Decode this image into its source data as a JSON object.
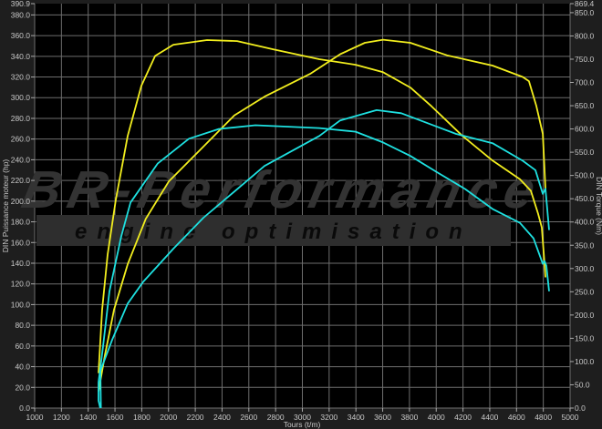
{
  "chart_data": {
    "type": "line",
    "title": "",
    "xlabel": "Tours (t/m)",
    "ylabel_left": "DIN Puissance moteur (hp)",
    "ylabel_right": "DIN Torque (Nm)",
    "xlim": [
      1000,
      5000
    ],
    "xticks": [
      1000,
      1200,
      1400,
      1600,
      1800,
      2000,
      2200,
      2400,
      2600,
      2800,
      3000,
      3200,
      3400,
      3600,
      3800,
      4000,
      4200,
      4400,
      4600,
      4800,
      5000
    ],
    "ylim_left": [
      0,
      390.9
    ],
    "yticks_left": [
      "0.0",
      "20.0",
      "40.0",
      "60.0",
      "80.0",
      "100.0",
      "120.0",
      "140.0",
      "160.0",
      "180.0",
      "200.0",
      "220.0",
      "240.0",
      "260.0",
      "280.0",
      "300.0",
      "320.0",
      "340.0",
      "360.0",
      "380.0",
      "390.9"
    ],
    "ylim_right": [
      0,
      869.4
    ],
    "yticks_right": [
      "0.0",
      "50.0",
      "100.0",
      "150.0",
      "200.0",
      "250.0",
      "300.0",
      "350.0",
      "400.0",
      "450.0",
      "500.0",
      "550.0",
      "600.0",
      "650.0",
      "700.0",
      "750.0",
      "800.0",
      "850.0",
      "869.4"
    ],
    "grid": true,
    "colors": {
      "tuned": "#f2ee1e",
      "stock": "#1ee0e0",
      "background": "#000000",
      "frame": "#1e1e1e",
      "grid": "#6e6e6e"
    },
    "series": [
      {
        "axis": "right",
        "color": "#f2ee1e",
        "points": [
          [
            1477,
            75
          ],
          [
            1504,
            212
          ],
          [
            1545,
            330
          ],
          [
            1606,
            447
          ],
          [
            1695,
            585
          ],
          [
            1797,
            693
          ],
          [
            1900,
            757
          ],
          [
            2036,
            781
          ],
          [
            2288,
            791
          ],
          [
            2513,
            789
          ],
          [
            2785,
            771
          ],
          [
            3126,
            750
          ],
          [
            3398,
            738
          ],
          [
            3603,
            722
          ],
          [
            3807,
            689
          ],
          [
            3964,
            649
          ],
          [
            4196,
            585
          ],
          [
            4421,
            532
          ],
          [
            4625,
            492
          ],
          [
            4707,
            467
          ],
          [
            4761,
            418
          ],
          [
            4789,
            388
          ],
          [
            4809,
            310
          ],
          [
            4816,
            281
          ]
        ]
      },
      {
        "axis": "left",
        "color": "#f2ee1e",
        "points": [
          [
            1477,
            16
          ],
          [
            1525,
            51
          ],
          [
            1593,
            95
          ],
          [
            1695,
            139
          ],
          [
            1831,
            183
          ],
          [
            2002,
            219
          ],
          [
            2240,
            250
          ],
          [
            2492,
            283
          ],
          [
            2717,
            301
          ],
          [
            3058,
            323
          ],
          [
            3283,
            342
          ],
          [
            3467,
            353
          ],
          [
            3603,
            356
          ],
          [
            3807,
            353
          ],
          [
            4080,
            341
          ],
          [
            4421,
            331
          ],
          [
            4646,
            320
          ],
          [
            4693,
            316
          ],
          [
            4748,
            292
          ],
          [
            4796,
            265
          ],
          [
            4816,
            212
          ]
        ]
      },
      {
        "axis": "right",
        "color": "#1ee0e0",
        "points": [
          [
            1490,
            0
          ],
          [
            1477,
            16
          ],
          [
            1477,
            55
          ],
          [
            1511,
            133
          ],
          [
            1559,
            251
          ],
          [
            1647,
            369
          ],
          [
            1716,
            442
          ],
          [
            1920,
            526
          ],
          [
            2152,
            579
          ],
          [
            2376,
            600
          ],
          [
            2649,
            608
          ],
          [
            3126,
            602
          ],
          [
            3398,
            594
          ],
          [
            3603,
            571
          ],
          [
            3807,
            542
          ],
          [
            4012,
            506
          ],
          [
            4216,
            471
          ],
          [
            4421,
            428
          ],
          [
            4625,
            398
          ],
          [
            4727,
            365
          ],
          [
            4796,
            310
          ],
          [
            4809,
            316
          ],
          [
            4823,
            306
          ],
          [
            4843,
            251
          ]
        ]
      },
      {
        "axis": "left",
        "color": "#1ee0e0",
        "points": [
          [
            1495,
            0
          ],
          [
            1491,
            36
          ],
          [
            1579,
            66
          ],
          [
            1695,
            101
          ],
          [
            1811,
            122
          ],
          [
            2036,
            154
          ],
          [
            2261,
            184
          ],
          [
            2717,
            234
          ],
          [
            3126,
            263
          ],
          [
            3283,
            278
          ],
          [
            3555,
            288
          ],
          [
            3739,
            285
          ],
          [
            3964,
            274
          ],
          [
            4148,
            265
          ],
          [
            4421,
            256
          ],
          [
            4646,
            239
          ],
          [
            4741,
            230
          ],
          [
            4796,
            207
          ],
          [
            4816,
            212
          ],
          [
            4843,
            172
          ]
        ]
      }
    ]
  },
  "watermark": {
    "brand": "BR-Performance",
    "tagline": "engine optimisation"
  }
}
